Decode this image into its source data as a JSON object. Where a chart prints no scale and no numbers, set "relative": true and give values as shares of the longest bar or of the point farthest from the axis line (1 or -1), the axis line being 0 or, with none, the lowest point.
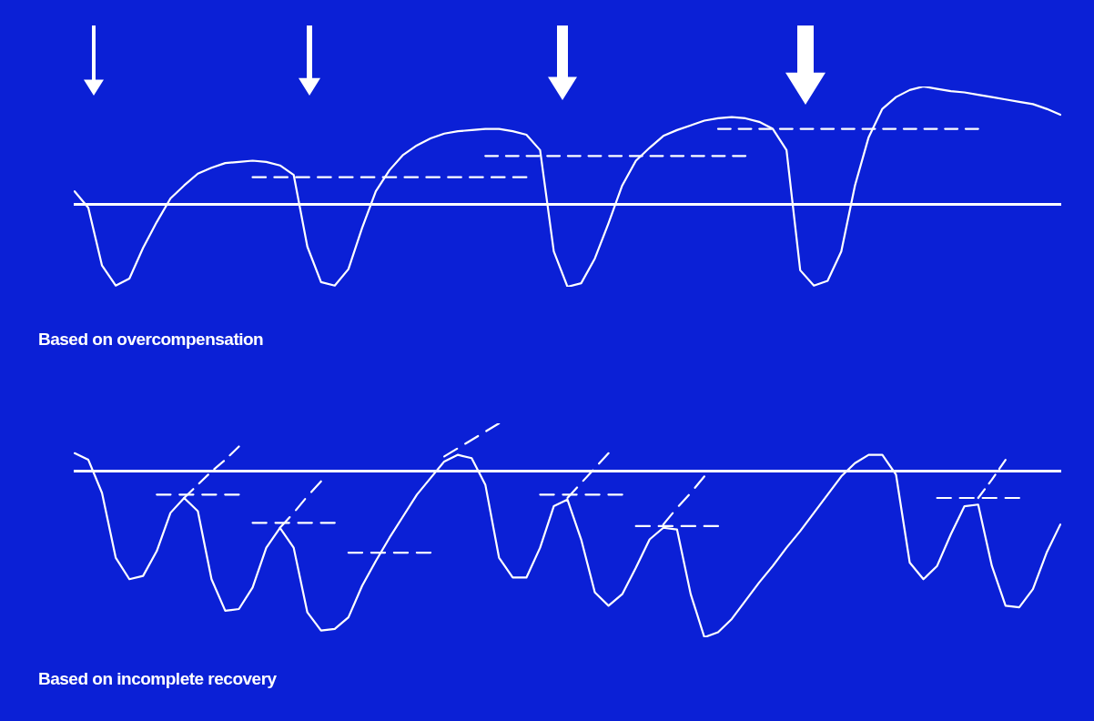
{
  "chart_data": [
    {
      "type": "line",
      "relative": true,
      "marker": "none",
      "line_style": "solid",
      "annotations": [
        "Based on overcompensation"
      ],
      "categories": [
        null,
        null,
        null,
        null,
        null,
        null,
        null,
        null,
        null,
        null,
        null,
        null,
        null,
        null,
        null,
        null,
        null,
        null,
        null,
        null,
        null,
        null,
        null,
        null,
        null,
        null,
        null,
        null,
        null,
        null,
        null,
        null,
        null,
        null,
        null,
        null,
        null,
        null,
        null,
        null,
        null,
        null,
        null,
        null,
        null,
        null,
        null,
        null,
        null,
        null,
        null,
        null,
        null,
        null,
        null,
        null,
        null,
        null,
        null,
        null,
        null,
        null,
        null,
        null,
        null,
        null,
        null,
        null,
        null,
        null,
        null,
        null,
        null
      ],
      "series": [
        {
          "color": "#ffffff",
          "values": [
            0.11,
            -0.03,
            -0.52,
            -0.69,
            -0.63,
            -0.37,
            -0.15,
            0.05,
            0.16,
            0.26,
            0.31,
            0.35,
            0.36,
            0.37,
            0.36,
            0.33,
            0.25,
            -0.36,
            -0.66,
            -0.69,
            -0.55,
            -0.2,
            0.11,
            0.29,
            0.42,
            0.5,
            0.56,
            0.6,
            0.62,
            0.63,
            0.64,
            0.64,
            0.62,
            0.59,
            0.46,
            -0.4,
            -0.7,
            -0.67,
            -0.46,
            -0.16,
            0.16,
            0.37,
            0.48,
            0.58,
            0.63,
            0.67,
            0.71,
            0.73,
            0.74,
            0.73,
            0.7,
            0.64,
            0.46,
            -0.56,
            -0.69,
            -0.65,
            -0.4,
            0.16,
            0.57,
            0.81,
            0.91,
            0.97,
            1,
            0.98,
            0.96,
            0.95,
            0.93,
            0.91,
            0.89,
            0.87,
            0.85,
            0.81,
            0.76
          ]
        },
        {
          "color": "#ffffff",
          "line_style": "dashed",
          "values": [
            null,
            null,
            null,
            null,
            null,
            null,
            null,
            null,
            null,
            null,
            null,
            null,
            null,
            0.23,
            0.23,
            0.23,
            0.23,
            0.23,
            0.23,
            0.23,
            0.23,
            0.23,
            0.23,
            0.23,
            0.23,
            0.23,
            0.23,
            0.23,
            0.23,
            0.23,
            0.23,
            0.23,
            0.23,
            0.23,
            null,
            null,
            null,
            null,
            null,
            null,
            null,
            null,
            null,
            null,
            null,
            null,
            null,
            null,
            null,
            null,
            null,
            null,
            null,
            null,
            null,
            null,
            null,
            null,
            null,
            null,
            null,
            null,
            null,
            null,
            null,
            null,
            null,
            null,
            null,
            null,
            null,
            null,
            null
          ]
        },
        {
          "color": "#ffffff",
          "line_style": "dashed",
          "values": [
            null,
            null,
            null,
            null,
            null,
            null,
            null,
            null,
            null,
            null,
            null,
            null,
            null,
            null,
            null,
            null,
            null,
            null,
            null,
            null,
            null,
            null,
            null,
            null,
            null,
            null,
            null,
            null,
            null,
            null,
            0.41,
            0.41,
            0.41,
            0.41,
            0.41,
            0.41,
            0.41,
            0.41,
            0.41,
            0.41,
            0.41,
            0.41,
            0.41,
            0.41,
            0.41,
            0.41,
            0.41,
            0.41,
            0.41,
            0.41,
            null,
            null,
            null,
            null,
            null,
            null,
            null,
            null,
            null,
            null,
            null,
            null,
            null,
            null,
            null,
            null,
            null,
            null,
            null,
            null,
            null,
            null,
            null
          ]
        },
        {
          "color": "#ffffff",
          "line_style": "dashed",
          "values": [
            null,
            null,
            null,
            null,
            null,
            null,
            null,
            null,
            null,
            null,
            null,
            null,
            null,
            null,
            null,
            null,
            null,
            null,
            null,
            null,
            null,
            null,
            null,
            null,
            null,
            null,
            null,
            null,
            null,
            null,
            null,
            null,
            null,
            null,
            null,
            null,
            null,
            null,
            null,
            null,
            null,
            null,
            null,
            null,
            null,
            null,
            null,
            0.64,
            0.64,
            0.64,
            0.64,
            0.64,
            0.64,
            0.64,
            0.64,
            0.64,
            0.64,
            0.64,
            0.64,
            0.64,
            0.64,
            0.64,
            0.64,
            0.64,
            0.64,
            0.64,
            0.64,
            null,
            null,
            null,
            null,
            null,
            null
          ]
        }
      ]
    },
    {
      "type": "line",
      "relative": true,
      "marker": "none",
      "line_style": "solid",
      "annotations": [
        "Based on incomplete recovery"
      ],
      "categories": [
        null,
        null,
        null,
        null,
        null,
        null,
        null,
        null,
        null,
        null,
        null,
        null,
        null,
        null,
        null,
        null,
        null,
        null,
        null,
        null,
        null,
        null,
        null,
        null,
        null,
        null,
        null,
        null,
        null,
        null,
        null,
        null,
        null,
        null,
        null,
        null,
        null,
        null,
        null,
        null,
        null,
        null,
        null,
        null,
        null,
        null,
        null,
        null,
        null,
        null,
        null,
        null,
        null,
        null,
        null,
        null,
        null,
        null,
        null,
        null,
        null,
        null,
        null,
        null,
        null,
        null,
        null,
        null,
        null,
        null,
        null,
        null,
        null
      ],
      "series": [
        {
          "color": "#ffffff",
          "values": [
            0.11,
            0.07,
            -0.13,
            -0.52,
            -0.65,
            -0.63,
            -0.48,
            -0.25,
            -0.16,
            -0.24,
            -0.65,
            -0.84,
            -0.83,
            -0.7,
            -0.46,
            -0.34,
            -0.46,
            -0.85,
            -0.96,
            -0.95,
            -0.88,
            -0.69,
            -0.54,
            -0.4,
            -0.27,
            -0.14,
            -0.04,
            0.06,
            0.1,
            0.08,
            -0.08,
            -0.52,
            -0.64,
            -0.64,
            -0.46,
            -0.21,
            -0.17,
            -0.41,
            -0.73,
            -0.81,
            -0.74,
            -0.58,
            -0.41,
            -0.34,
            -0.35,
            -0.74,
            -1,
            -0.97,
            -0.89,
            -0.78,
            -0.67,
            -0.57,
            -0.46,
            -0.36,
            -0.25,
            -0.14,
            -0.03,
            0.05,
            0.1,
            0.1,
            -0.02,
            -0.55,
            -0.65,
            -0.57,
            -0.38,
            -0.21,
            -0.2,
            -0.57,
            -0.81,
            -0.82,
            -0.71,
            -0.49,
            -0.32
          ]
        },
        {
          "color": "#ffffff",
          "line_style": "dashed",
          "values": [
            null,
            null,
            null,
            null,
            null,
            null,
            -0.14,
            -0.14,
            -0.14,
            -0.14,
            -0.14,
            -0.14,
            -0.14,
            null,
            null,
            null,
            null,
            null,
            null,
            null,
            null,
            null,
            null,
            null,
            null,
            null,
            null,
            null,
            null,
            null,
            null,
            null,
            null,
            null,
            null,
            null,
            null,
            null,
            null,
            null,
            null,
            null,
            null,
            null,
            null,
            null,
            null,
            null,
            null,
            null,
            null,
            null,
            null,
            null,
            null,
            null,
            null,
            null,
            null,
            null,
            null,
            null,
            null,
            null,
            null,
            null,
            null,
            null,
            null,
            null,
            null,
            null,
            null
          ]
        },
        {
          "color": "#ffffff",
          "line_style": "dashed",
          "values": [
            null,
            null,
            null,
            null,
            null,
            null,
            null,
            null,
            null,
            null,
            null,
            null,
            null,
            -0.31,
            -0.31,
            -0.31,
            -0.31,
            -0.31,
            -0.31,
            -0.31,
            null,
            null,
            null,
            null,
            null,
            null,
            null,
            null,
            null,
            null,
            null,
            null,
            null,
            null,
            null,
            null,
            null,
            null,
            null,
            null,
            null,
            null,
            null,
            null,
            null,
            null,
            null,
            null,
            null,
            null,
            null,
            null,
            null,
            null,
            null,
            null,
            null,
            null,
            null,
            null,
            null,
            null,
            null,
            null,
            null,
            null,
            null,
            null,
            null,
            null,
            null,
            null,
            null
          ]
        },
        {
          "color": "#ffffff",
          "line_style": "dashed",
          "values": [
            null,
            null,
            null,
            null,
            null,
            null,
            null,
            null,
            null,
            null,
            null,
            null,
            null,
            null,
            null,
            null,
            null,
            null,
            null,
            null,
            -0.49,
            -0.49,
            -0.49,
            -0.49,
            -0.49,
            -0.49,
            -0.49,
            null,
            null,
            null,
            null,
            null,
            null,
            null,
            null,
            null,
            null,
            null,
            null,
            null,
            null,
            null,
            null,
            null,
            null,
            null,
            null,
            null,
            null,
            null,
            null,
            null,
            null,
            null,
            null,
            null,
            null,
            null,
            null,
            null,
            null,
            null,
            null,
            null,
            null,
            null,
            null,
            null,
            null,
            null,
            null,
            null,
            null
          ]
        },
        {
          "color": "#ffffff",
          "line_style": "dashed",
          "values": [
            null,
            null,
            null,
            null,
            null,
            null,
            null,
            null,
            null,
            null,
            null,
            null,
            null,
            null,
            null,
            null,
            null,
            null,
            null,
            null,
            null,
            null,
            null,
            null,
            null,
            null,
            null,
            null,
            null,
            null,
            null,
            null,
            null,
            null,
            -0.14,
            -0.14,
            -0.14,
            -0.14,
            -0.14,
            -0.14,
            -0.14,
            null,
            null,
            null,
            null,
            null,
            null,
            null,
            null,
            null,
            null,
            null,
            null,
            null,
            null,
            null,
            null,
            null,
            null,
            null,
            null,
            null,
            null,
            null,
            null,
            null,
            null,
            null,
            null,
            null,
            null,
            null,
            null
          ]
        },
        {
          "color": "#ffffff",
          "line_style": "dashed",
          "values": [
            null,
            null,
            null,
            null,
            null,
            null,
            null,
            null,
            null,
            null,
            null,
            null,
            null,
            null,
            null,
            null,
            null,
            null,
            null,
            null,
            null,
            null,
            null,
            null,
            null,
            null,
            null,
            null,
            null,
            null,
            null,
            null,
            null,
            null,
            null,
            null,
            null,
            null,
            null,
            null,
            null,
            -0.33,
            -0.33,
            -0.33,
            -0.33,
            -0.33,
            -0.33,
            -0.33,
            null,
            null,
            null,
            null,
            null,
            null,
            null,
            null,
            null,
            null,
            null,
            null,
            null,
            null,
            null,
            null,
            null,
            null,
            null,
            null,
            null,
            null,
            null,
            null,
            null
          ]
        },
        {
          "color": "#ffffff",
          "line_style": "dashed",
          "values": [
            null,
            null,
            null,
            null,
            null,
            null,
            null,
            null,
            null,
            null,
            null,
            null,
            null,
            null,
            null,
            null,
            null,
            null,
            null,
            null,
            null,
            null,
            null,
            null,
            null,
            null,
            null,
            null,
            null,
            null,
            null,
            null,
            null,
            null,
            null,
            null,
            null,
            null,
            null,
            null,
            null,
            null,
            null,
            null,
            null,
            null,
            null,
            null,
            null,
            null,
            null,
            null,
            null,
            null,
            null,
            null,
            null,
            null,
            null,
            null,
            null,
            null,
            null,
            -0.16,
            -0.16,
            -0.16,
            -0.16,
            -0.16,
            -0.16,
            -0.16,
            null,
            null,
            null
          ]
        },
        {
          "color": "#ffffff",
          "line_style": "dashed",
          "values": [
            null,
            null,
            null,
            null,
            null,
            null,
            null,
            null,
            -0.16,
            -0.08,
            0,
            0.07,
            0.15,
            null,
            null,
            null,
            null,
            null,
            null,
            null,
            null,
            null,
            null,
            null,
            null,
            null,
            null,
            null,
            null,
            null,
            null,
            null,
            null,
            null,
            null,
            null,
            null,
            null,
            null,
            null,
            null,
            null,
            null,
            null,
            null,
            null,
            null,
            null,
            null,
            null,
            null,
            null,
            null,
            null,
            null,
            null,
            null,
            null,
            null,
            null,
            null,
            null,
            null,
            null,
            null,
            null,
            null,
            null,
            null,
            null,
            null,
            null,
            null
          ]
        },
        {
          "color": "#ffffff",
          "line_style": "dashed",
          "values": [
            null,
            null,
            null,
            null,
            null,
            null,
            null,
            null,
            null,
            null,
            null,
            null,
            null,
            null,
            null,
            -0.34,
            -0.25,
            -0.15,
            -0.06,
            null,
            null,
            null,
            null,
            null,
            null,
            null,
            null,
            null,
            null,
            null,
            null,
            null,
            null,
            null,
            null,
            null,
            null,
            null,
            null,
            null,
            null,
            null,
            null,
            null,
            null,
            null,
            null,
            null,
            null,
            null,
            null,
            null,
            null,
            null,
            null,
            null,
            null,
            null,
            null,
            null,
            null,
            null,
            null,
            null,
            null,
            null,
            null,
            null,
            null,
            null,
            null,
            null,
            null
          ]
        },
        {
          "color": "#ffffff",
          "line_style": "dashed",
          "values": [
            null,
            null,
            null,
            null,
            null,
            null,
            null,
            null,
            null,
            null,
            null,
            null,
            null,
            null,
            null,
            null,
            null,
            null,
            null,
            null,
            null,
            null,
            null,
            null,
            null,
            null,
            null,
            0.09,
            0.14,
            0.19,
            0.24,
            0.29,
            null,
            null,
            null,
            null,
            null,
            null,
            null,
            null,
            null,
            null,
            null,
            null,
            null,
            null,
            null,
            null,
            null,
            null,
            null,
            null,
            null,
            null,
            null,
            null,
            null,
            null,
            null,
            null,
            null,
            null,
            null,
            null,
            null,
            null,
            null,
            null,
            null,
            null,
            null,
            null,
            null
          ]
        },
        {
          "color": "#ffffff",
          "line_style": "dashed",
          "values": [
            null,
            null,
            null,
            null,
            null,
            null,
            null,
            null,
            null,
            null,
            null,
            null,
            null,
            null,
            null,
            null,
            null,
            null,
            null,
            null,
            null,
            null,
            null,
            null,
            null,
            null,
            null,
            null,
            null,
            null,
            null,
            null,
            null,
            null,
            null,
            null,
            -0.16,
            -0.07,
            0.02,
            0.11,
            null,
            null,
            null,
            null,
            null,
            null,
            null,
            null,
            null,
            null,
            null,
            null,
            null,
            null,
            null,
            null,
            null,
            null,
            null,
            null,
            null,
            null,
            null,
            null,
            null,
            null,
            null,
            null,
            null,
            null,
            null,
            null,
            null
          ]
        },
        {
          "color": "#ffffff",
          "line_style": "dashed",
          "values": [
            null,
            null,
            null,
            null,
            null,
            null,
            null,
            null,
            null,
            null,
            null,
            null,
            null,
            null,
            null,
            null,
            null,
            null,
            null,
            null,
            null,
            null,
            null,
            null,
            null,
            null,
            null,
            null,
            null,
            null,
            null,
            null,
            null,
            null,
            null,
            null,
            null,
            null,
            null,
            null,
            null,
            null,
            null,
            -0.32,
            -0.22,
            -0.13,
            -0.03,
            null,
            null,
            null,
            null,
            null,
            null,
            null,
            null,
            null,
            null,
            null,
            null,
            null,
            null,
            null,
            null,
            null,
            null,
            null,
            null,
            null,
            null,
            null,
            null,
            null,
            null
          ]
        },
        {
          "color": "#ffffff",
          "line_style": "dashed",
          "values": [
            null,
            null,
            null,
            null,
            null,
            null,
            null,
            null,
            null,
            null,
            null,
            null,
            null,
            null,
            null,
            null,
            null,
            null,
            null,
            null,
            null,
            null,
            null,
            null,
            null,
            null,
            null,
            null,
            null,
            null,
            null,
            null,
            null,
            null,
            null,
            null,
            null,
            null,
            null,
            null,
            null,
            null,
            null,
            null,
            null,
            null,
            null,
            null,
            null,
            null,
            null,
            null,
            null,
            null,
            null,
            null,
            null,
            null,
            null,
            null,
            null,
            null,
            null,
            null,
            null,
            null,
            -0.16,
            -0.05,
            0.07,
            null,
            null,
            null,
            null
          ]
        }
      ]
    }
  ]
}
